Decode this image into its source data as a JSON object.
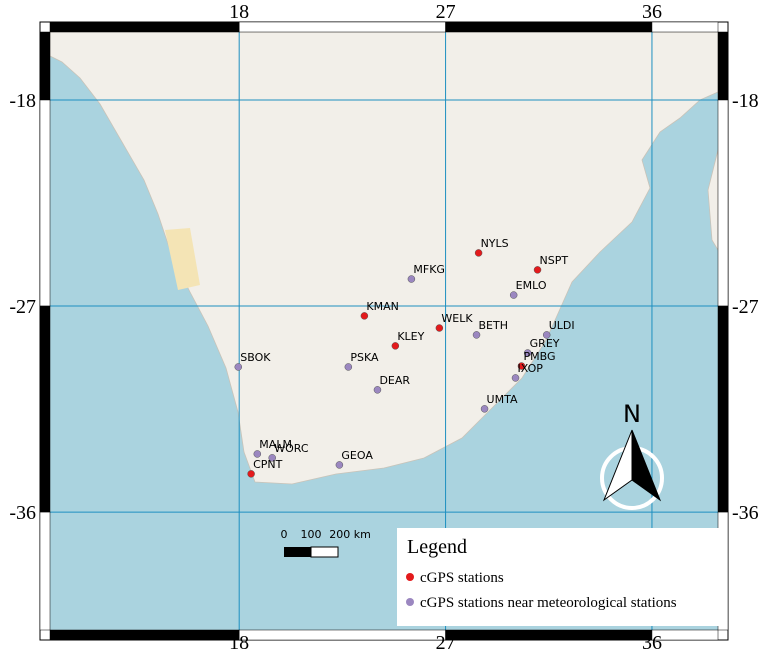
{
  "map": {
    "lon_range": [
      9.75,
      38.88
    ],
    "lat_range": [
      -15.03,
      -41.15
    ],
    "lon_ticks": [
      18,
      27,
      36
    ],
    "lat_ticks": [
      -18,
      -27,
      -36
    ],
    "stations": [
      {
        "label": "NYLS",
        "lon": 28.44,
        "lat": -24.68,
        "kind": 0
      },
      {
        "label": "NSPT",
        "lon": 31.01,
        "lat": -25.42,
        "kind": 0
      },
      {
        "label": "MFKG",
        "lon": 25.51,
        "lat": -25.82,
        "kind": 1
      },
      {
        "label": "EMLO",
        "lon": 29.97,
        "lat": -26.52,
        "kind": 1
      },
      {
        "label": "KMAN",
        "lon": 23.46,
        "lat": -27.43,
        "kind": 0
      },
      {
        "label": "WELK",
        "lon": 26.73,
        "lat": -27.96,
        "kind": 0
      },
      {
        "label": "BETH",
        "lon": 28.35,
        "lat": -28.26,
        "kind": 1
      },
      {
        "label": "ULDI",
        "lon": 31.41,
        "lat": -28.26,
        "kind": 1
      },
      {
        "label": "KLEY",
        "lon": 24.81,
        "lat": -28.74,
        "kind": 0
      },
      {
        "label": "GREY",
        "lon": 30.58,
        "lat": -29.05,
        "kind": 1
      },
      {
        "label": "PMBG",
        "lon": 30.31,
        "lat": -29.62,
        "kind": 0
      },
      {
        "label": "SBOK",
        "lon": 17.96,
        "lat": -29.66,
        "kind": 1
      },
      {
        "label": "PSKA",
        "lon": 22.76,
        "lat": -29.66,
        "kind": 1
      },
      {
        "label": "IXOP",
        "lon": 30.05,
        "lat": -30.14,
        "kind": 1
      },
      {
        "label": "DEAR",
        "lon": 24.03,
        "lat": -30.66,
        "kind": 1
      },
      {
        "label": "UMTA",
        "lon": 28.7,
        "lat": -31.49,
        "kind": 1
      },
      {
        "label": "MALM",
        "lon": 18.79,
        "lat": -33.46,
        "kind": 1
      },
      {
        "label": "WORC",
        "lon": 19.44,
        "lat": -33.63,
        "kind": 1
      },
      {
        "label": "GEOA",
        "lon": 22.37,
        "lat": -33.94,
        "kind": 1
      },
      {
        "label": "CPNT",
        "lon": 18.52,
        "lat": -34.33,
        "kind": 0
      }
    ],
    "legend": {
      "title": "Legend",
      "items": [
        {
          "label": "cGPS stations",
          "color": "#e31a1c"
        },
        {
          "label": "cGPS stations near meteorological stations",
          "color": "#9b87c0"
        }
      ]
    },
    "scale_bar": {
      "labels": [
        "0",
        "100",
        "200 km"
      ]
    },
    "north": "N"
  }
}
